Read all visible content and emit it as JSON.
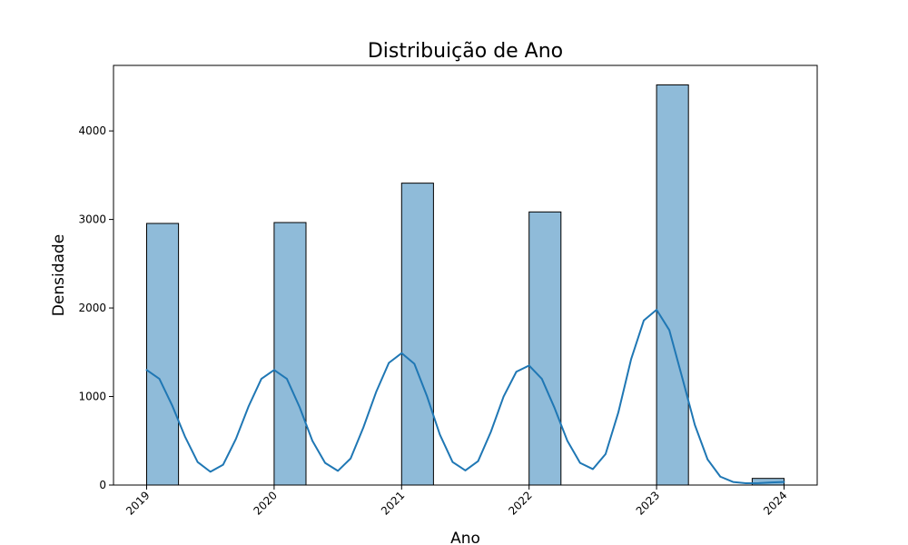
{
  "chart_data": {
    "type": "bar",
    "title": "Distribuição de Ano",
    "xlabel": "Ano",
    "ylabel": "Densidade",
    "x_ticks": [
      "2019",
      "2020",
      "2021",
      "2022",
      "2023",
      "2024"
    ],
    "y_ticks": [
      "0",
      "1000",
      "2000",
      "3000",
      "4000"
    ],
    "xlim": [
      2018.74,
      2024.26
    ],
    "ylim": [
      0,
      4740
    ],
    "bar_color": "#8fbbd9",
    "bar_edge_color": "#000000",
    "kde_color": "#1f77b4",
    "grid": false,
    "bins": [
      {
        "x_start": 2019.0,
        "x_end": 2019.25,
        "value": 2955
      },
      {
        "x_start": 2020.0,
        "x_end": 2020.25,
        "value": 2965
      },
      {
        "x_start": 2021.0,
        "x_end": 2021.25,
        "value": 3410
      },
      {
        "x_start": 2022.0,
        "x_end": 2022.25,
        "value": 3085
      },
      {
        "x_start": 2023.0,
        "x_end": 2023.25,
        "value": 4520
      },
      {
        "x_start": 2023.75,
        "x_end": 2024.0,
        "value": 75
      }
    ],
    "kde": {
      "name": "",
      "points": [
        [
          2019.0,
          1300
        ],
        [
          2019.1,
          1200
        ],
        [
          2019.2,
          900
        ],
        [
          2019.3,
          550
        ],
        [
          2019.4,
          260
        ],
        [
          2019.5,
          150
        ],
        [
          2019.6,
          230
        ],
        [
          2019.7,
          520
        ],
        [
          2019.8,
          890
        ],
        [
          2019.9,
          1200
        ],
        [
          2020.0,
          1300
        ],
        [
          2020.1,
          1200
        ],
        [
          2020.2,
          880
        ],
        [
          2020.3,
          500
        ],
        [
          2020.4,
          250
        ],
        [
          2020.5,
          160
        ],
        [
          2020.6,
          300
        ],
        [
          2020.7,
          650
        ],
        [
          2020.8,
          1050
        ],
        [
          2020.9,
          1380
        ],
        [
          2021.0,
          1490
        ],
        [
          2021.1,
          1370
        ],
        [
          2021.2,
          1000
        ],
        [
          2021.3,
          570
        ],
        [
          2021.4,
          260
        ],
        [
          2021.5,
          165
        ],
        [
          2021.6,
          270
        ],
        [
          2021.7,
          600
        ],
        [
          2021.8,
          1000
        ],
        [
          2021.9,
          1280
        ],
        [
          2022.0,
          1350
        ],
        [
          2022.1,
          1200
        ],
        [
          2022.2,
          870
        ],
        [
          2022.3,
          500
        ],
        [
          2022.4,
          250
        ],
        [
          2022.5,
          180
        ],
        [
          2022.6,
          350
        ],
        [
          2022.7,
          820
        ],
        [
          2022.8,
          1420
        ],
        [
          2022.9,
          1860
        ],
        [
          2023.0,
          1980
        ],
        [
          2023.1,
          1750
        ],
        [
          2023.2,
          1220
        ],
        [
          2023.3,
          680
        ],
        [
          2023.4,
          290
        ],
        [
          2023.5,
          95
        ],
        [
          2023.6,
          35
        ],
        [
          2023.7,
          20
        ],
        [
          2023.8,
          22
        ],
        [
          2023.9,
          30
        ],
        [
          2024.0,
          35
        ]
      ]
    }
  }
}
